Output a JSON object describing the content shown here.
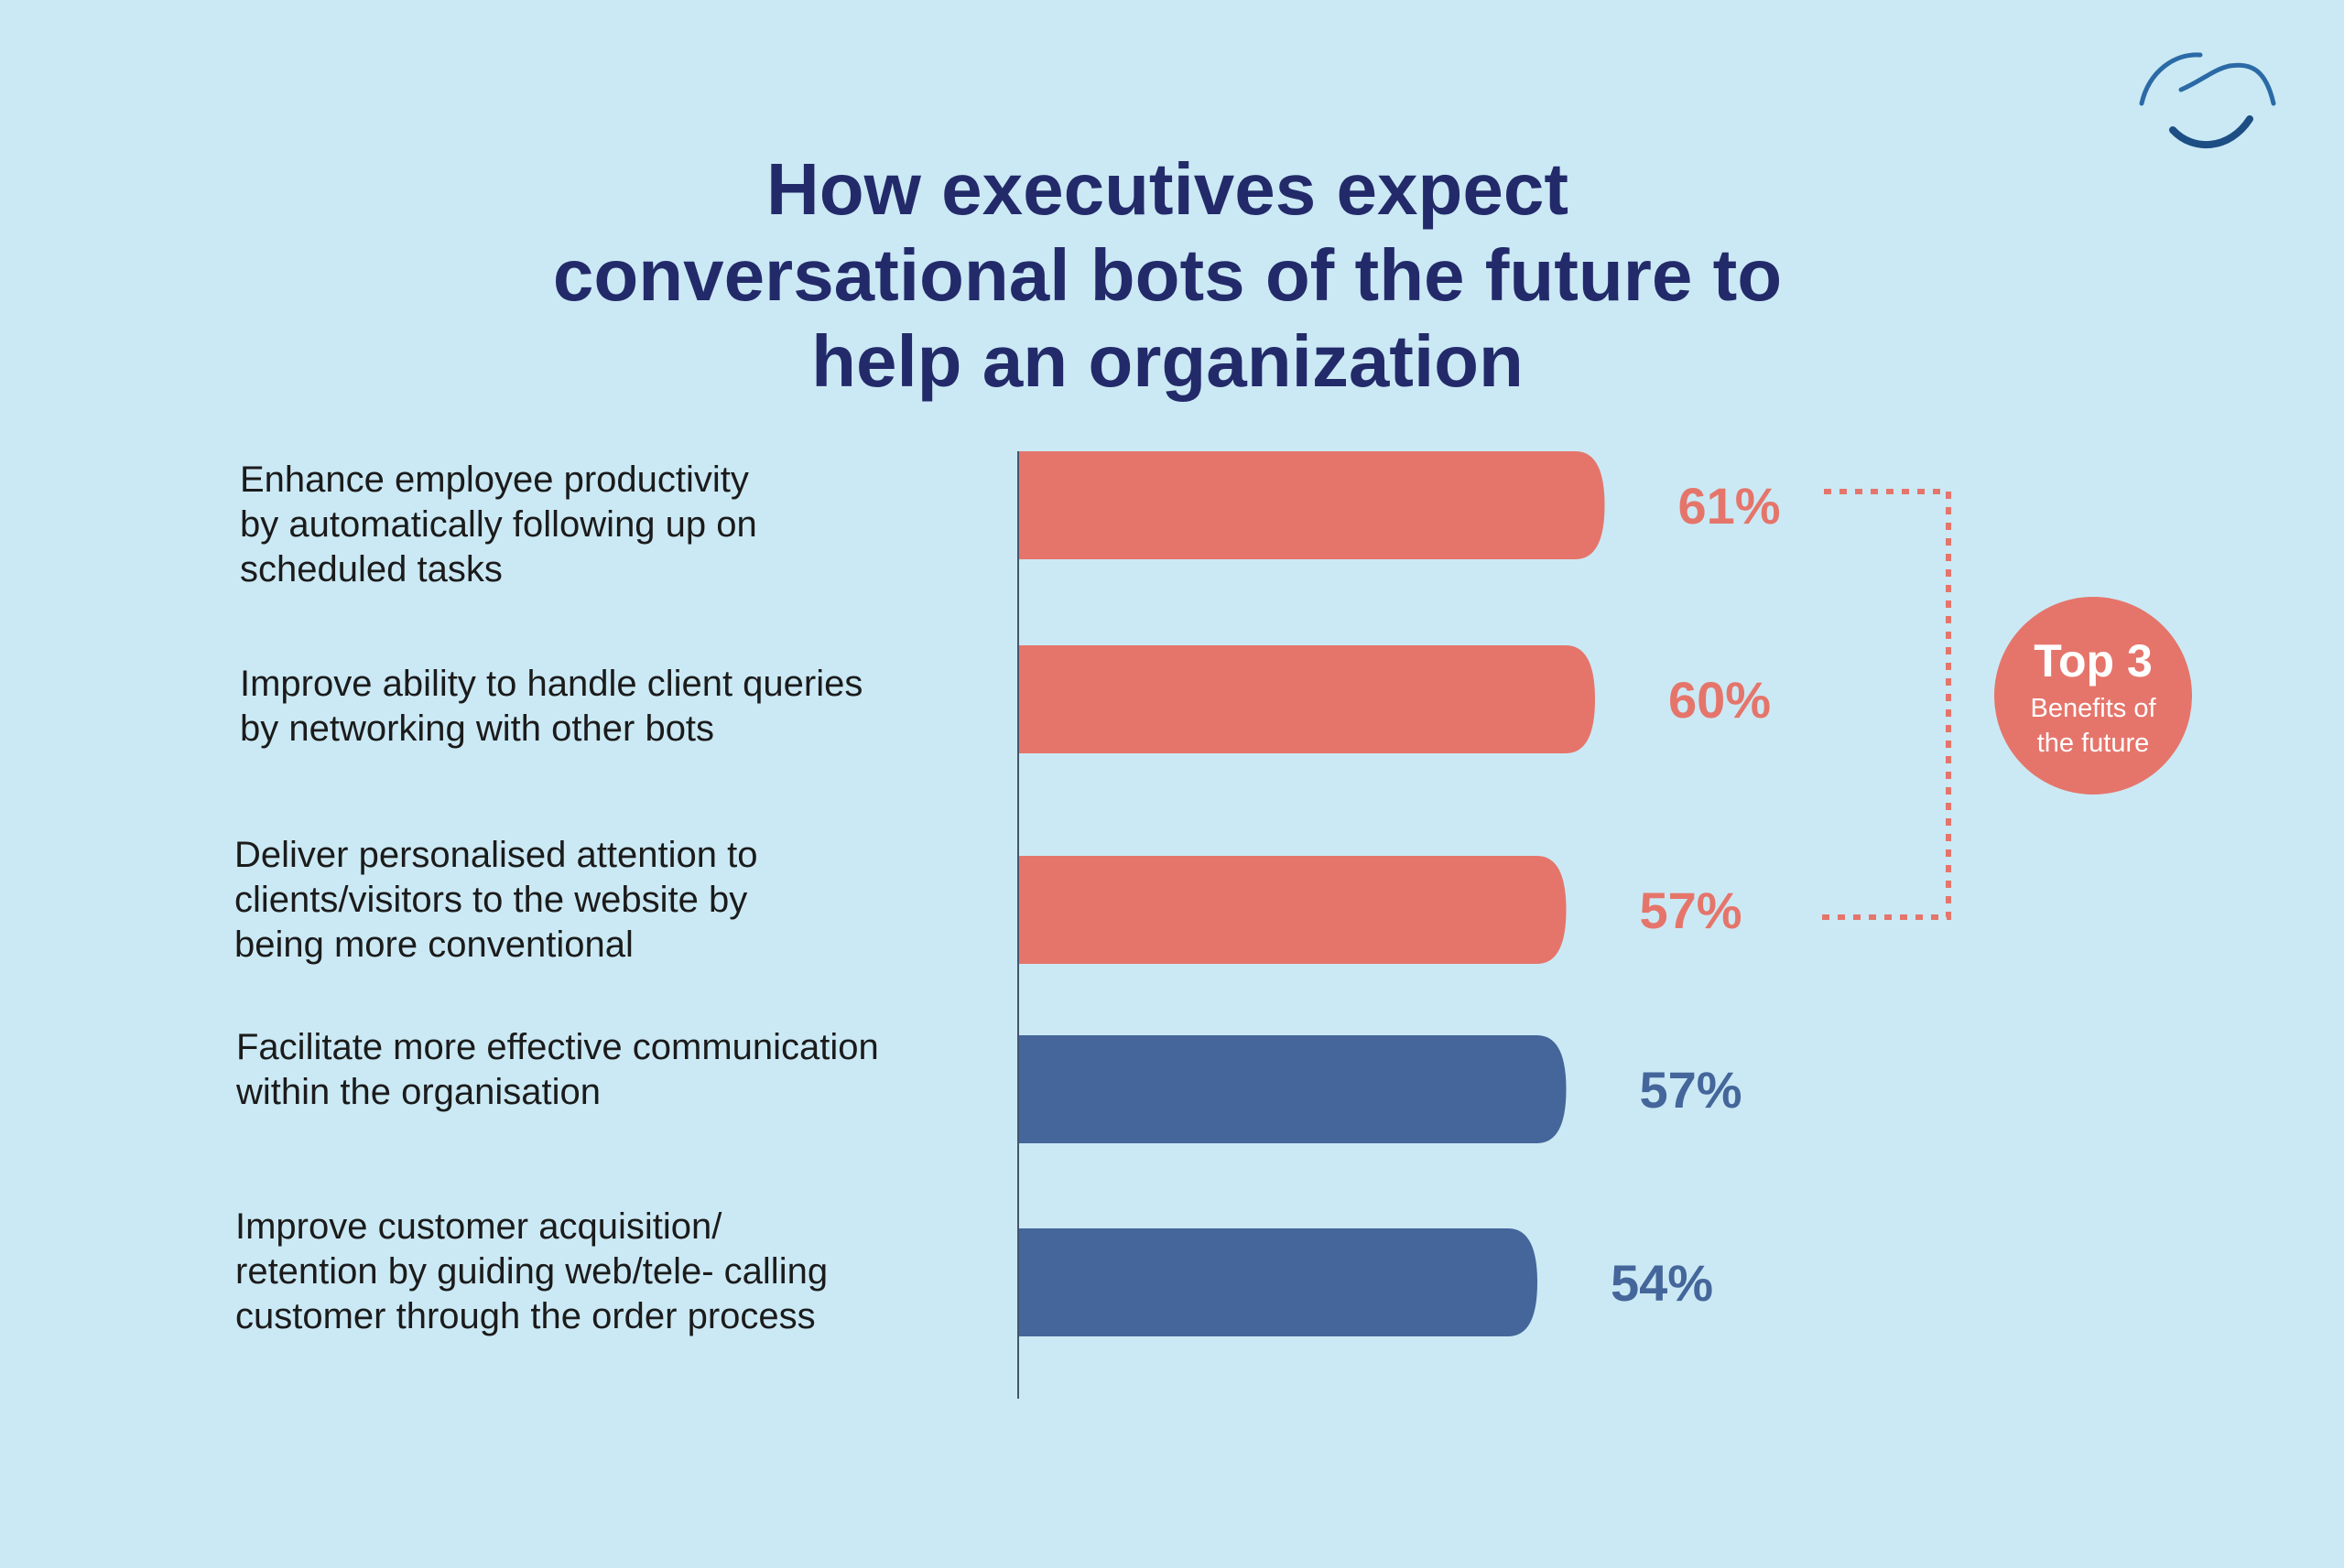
{
  "colors": {
    "background": "#cbe9f4",
    "title": "#232a6a",
    "top3_bar": "#e5756b",
    "other_bar": "#44669a",
    "axis": "#44556e"
  },
  "logo": {
    "icon": "wave-circle-logo-icon"
  },
  "chart_data": {
    "type": "bar",
    "orientation": "horizontal",
    "title": "How executives expect conversational bots of the future to help an organization",
    "categories": [
      [
        "Enhance employee productivity",
        "by automatically following up on",
        "scheduled tasks"
      ],
      [
        "Improve ability to handle client queries",
        "by networking with other bots"
      ],
      [
        "Deliver personalised attention to",
        "clients/visitors to the website by",
        "being more conventional"
      ],
      [
        "Facilitate more effective communication",
        "within the organisation"
      ],
      [
        "Improve customer acquisition/",
        "retention by guiding web/tele- calling",
        "customer through the order process"
      ]
    ],
    "values": [
      61,
      60,
      57,
      57,
      54
    ],
    "value_labels": [
      "61%",
      "60%",
      "57%",
      "57%",
      "54%"
    ],
    "highlighted": [
      true,
      true,
      true,
      false,
      false
    ],
    "unit": "%",
    "xlim": [
      0,
      100
    ],
    "grid": false,
    "legend": null,
    "annotation": {
      "title": "Top 3",
      "subtitle_lines": [
        "Benefits of",
        "the future"
      ],
      "spans": [
        0,
        2
      ]
    }
  }
}
